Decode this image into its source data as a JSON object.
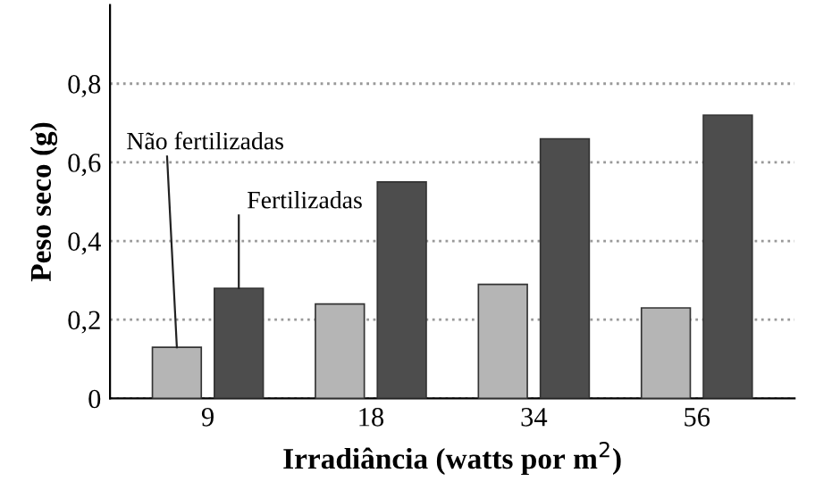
{
  "chart_data": {
    "type": "bar",
    "xlabel": "Irradiância (watts por m$^{2}$)",
    "ylabel": "Peso seco (g)",
    "categories": [
      "9",
      "18",
      "34",
      "56"
    ],
    "series": [
      {
        "name": "Não fertilizadas",
        "color": "#b5b5b5",
        "values": [
          0.13,
          0.24,
          0.29,
          0.23
        ]
      },
      {
        "name": "Fertilizadas",
        "color": "#4d4d4d",
        "values": [
          0.28,
          0.55,
          0.66,
          0.72
        ]
      }
    ],
    "ylim": [
      0,
      1.0
    ],
    "yticks": [
      {
        "value": 0,
        "label": "0"
      },
      {
        "value": 0.2,
        "label": "0,2"
      },
      {
        "value": 0.4,
        "label": "0,4"
      },
      {
        "value": 0.6,
        "label": "0,6"
      },
      {
        "value": 0.8,
        "label": "0,8"
      }
    ],
    "grid": "y",
    "legend": false
  }
}
